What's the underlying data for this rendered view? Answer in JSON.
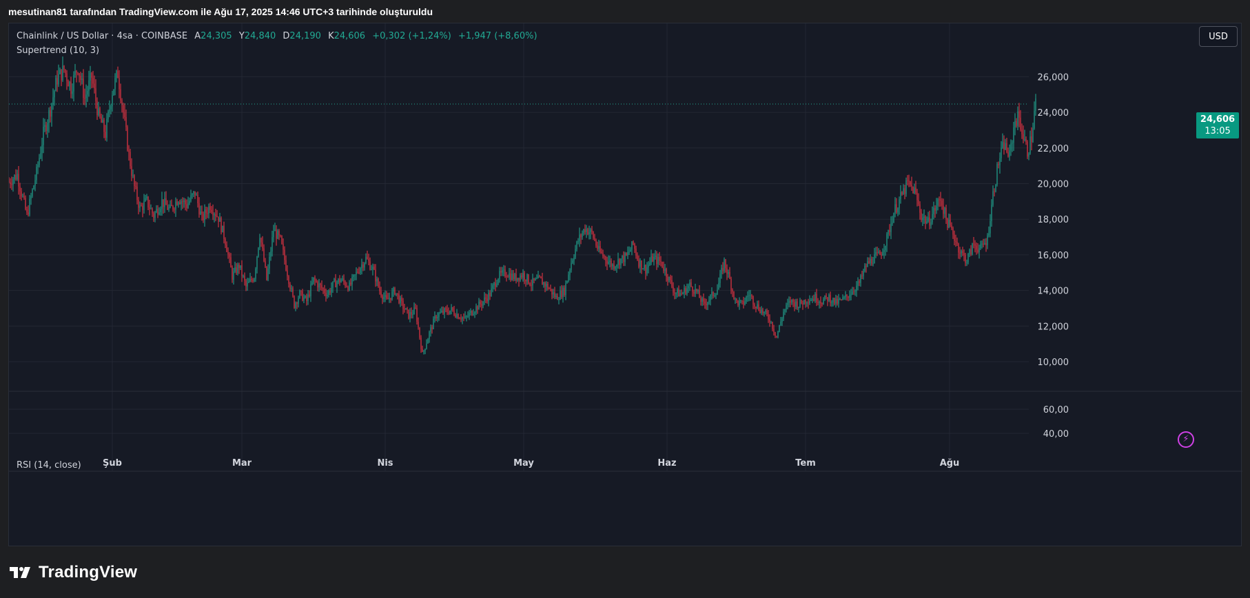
{
  "caption": "mesutinan81 tarafından TradingView.com ile Ağu 17, 2025 14:46 UTC+3 tarihinde oluşturuldu",
  "legend": {
    "title": "Chainlink / US Dollar · 4sa · COINBASE",
    "open_key": "A",
    "open": "24,305",
    "high_key": "Y",
    "high": "24,840",
    "low_key": "D",
    "low": "24,190",
    "close_key": "K",
    "close": "24,606",
    "change": "+0,302 (+1,24%)",
    "change2": "+1,947 (+8,60%)"
  },
  "supertrend_label": "Supertrend (10, 3)",
  "rsi_label": "RSI (14, close)",
  "currency_button": "USD",
  "price_tag": {
    "price": "24,606",
    "countdown": "13:05"
  },
  "brand": "TradingView",
  "colors": {
    "up": "#22ab94",
    "down": "#f23645",
    "bg": "#161a25",
    "grid": "#232733"
  },
  "chart_data": {
    "type": "candlestick",
    "symbol": "Chainlink / US Dollar",
    "interval": "4h",
    "exchange": "COINBASE",
    "x_ticks": [
      "Şub",
      "Mar",
      "Nis",
      "May",
      "Haz",
      "Tem",
      "Ağu"
    ],
    "y_ticks": [
      "10,000",
      "12,000",
      "14,000",
      "16,000",
      "18,000",
      "20,000",
      "22,000",
      "24,000",
      "26,000"
    ],
    "ylim": [
      8.4,
      28.8
    ],
    "rsi_ticks": [
      "40,00",
      "60,00"
    ],
    "last_price": 24.606,
    "anchors": [
      [
        0,
        20.1
      ],
      [
        12,
        20.5
      ],
      [
        26,
        18.2
      ],
      [
        40,
        20.6
      ],
      [
        50,
        22.8
      ],
      [
        60,
        24.2
      ],
      [
        70,
        25.9
      ],
      [
        80,
        26.4
      ],
      [
        90,
        25.4
      ],
      [
        100,
        26.6
      ],
      [
        110,
        24.8
      ],
      [
        120,
        26.0
      ],
      [
        130,
        23.8
      ],
      [
        140,
        22.8
      ],
      [
        150,
        25.2
      ],
      [
        158,
        26.2
      ],
      [
        166,
        24.0
      ],
      [
        174,
        21.6
      ],
      [
        182,
        19.8
      ],
      [
        190,
        18.6
      ],
      [
        200,
        19.0
      ],
      [
        210,
        18.2
      ],
      [
        222,
        19.0
      ],
      [
        234,
        18.5
      ],
      [
        246,
        19.2
      ],
      [
        258,
        18.8
      ],
      [
        270,
        19.5
      ],
      [
        280,
        18.0
      ],
      [
        292,
        18.8
      ],
      [
        304,
        18.1
      ],
      [
        314,
        16.8
      ],
      [
        324,
        14.8
      ],
      [
        334,
        15.4
      ],
      [
        344,
        14.2
      ],
      [
        356,
        14.8
      ],
      [
        364,
        17.2
      ],
      [
        374,
        14.6
      ],
      [
        384,
        17.4
      ],
      [
        394,
        16.8
      ],
      [
        404,
        15.0
      ],
      [
        414,
        13.2
      ],
      [
        422,
        13.8
      ],
      [
        432,
        13.4
      ],
      [
        442,
        14.6
      ],
      [
        452,
        14.2
      ],
      [
        462,
        13.8
      ],
      [
        472,
        14.4
      ],
      [
        482,
        14.6
      ],
      [
        494,
        14.2
      ],
      [
        506,
        15.1
      ],
      [
        518,
        15.8
      ],
      [
        528,
        15.2
      ],
      [
        538,
        14.0
      ],
      [
        548,
        13.4
      ],
      [
        560,
        14.0
      ],
      [
        570,
        13.2
      ],
      [
        580,
        12.6
      ],
      [
        590,
        12.9
      ],
      [
        600,
        10.4
      ],
      [
        610,
        11.6
      ],
      [
        620,
        12.6
      ],
      [
        632,
        12.8
      ],
      [
        642,
        12.9
      ],
      [
        652,
        12.6
      ],
      [
        662,
        12.4
      ],
      [
        674,
        12.9
      ],
      [
        686,
        13.3
      ],
      [
        698,
        13.8
      ],
      [
        710,
        14.8
      ],
      [
        722,
        15.0
      ],
      [
        734,
        14.7
      ],
      [
        746,
        14.9
      ],
      [
        758,
        14.4
      ],
      [
        770,
        14.6
      ],
      [
        782,
        14.2
      ],
      [
        794,
        13.6
      ],
      [
        806,
        14.0
      ],
      [
        816,
        15.6
      ],
      [
        826,
        16.8
      ],
      [
        836,
        17.5
      ],
      [
        846,
        17.2
      ],
      [
        856,
        16.2
      ],
      [
        866,
        15.8
      ],
      [
        876,
        15.4
      ],
      [
        886,
        15.7
      ],
      [
        896,
        15.9
      ],
      [
        906,
        16.6
      ],
      [
        914,
        15.6
      ],
      [
        924,
        15.2
      ],
      [
        934,
        15.8
      ],
      [
        946,
        15.6
      ],
      [
        956,
        14.8
      ],
      [
        966,
        13.9
      ],
      [
        976,
        13.8
      ],
      [
        988,
        14.3
      ],
      [
        998,
        13.9
      ],
      [
        1008,
        13.2
      ],
      [
        1018,
        13.6
      ],
      [
        1028,
        14.1
      ],
      [
        1038,
        15.6
      ],
      [
        1046,
        14.6
      ],
      [
        1054,
        13.4
      ],
      [
        1064,
        13.2
      ],
      [
        1074,
        13.8
      ],
      [
        1084,
        13.2
      ],
      [
        1094,
        12.8
      ],
      [
        1104,
        12.4
      ],
      [
        1114,
        11.4
      ],
      [
        1124,
        12.8
      ],
      [
        1134,
        13.4
      ],
      [
        1146,
        13.2
      ],
      [
        1158,
        13.5
      ],
      [
        1170,
        13.6
      ],
      [
        1180,
        13.4
      ],
      [
        1190,
        13.6
      ],
      [
        1200,
        13.3
      ],
      [
        1212,
        13.5
      ],
      [
        1224,
        14.0
      ],
      [
        1234,
        14.4
      ],
      [
        1244,
        15.4
      ],
      [
        1254,
        15.8
      ],
      [
        1264,
        16.0
      ],
      [
        1274,
        16.9
      ],
      [
        1284,
        18.4
      ],
      [
        1294,
        19.2
      ],
      [
        1304,
        20.0
      ],
      [
        1314,
        19.6
      ],
      [
        1324,
        18.2
      ],
      [
        1334,
        17.8
      ],
      [
        1344,
        18.6
      ],
      [
        1352,
        19.2
      ],
      [
        1360,
        18.0
      ],
      [
        1370,
        17.2
      ],
      [
        1380,
        16.2
      ],
      [
        1390,
        15.7
      ],
      [
        1400,
        16.6
      ],
      [
        1410,
        16.3
      ],
      [
        1420,
        16.9
      ],
      [
        1428,
        19.4
      ],
      [
        1436,
        21.2
      ],
      [
        1444,
        22.2
      ],
      [
        1452,
        21.5
      ],
      [
        1460,
        23.6
      ],
      [
        1466,
        23.7
      ],
      [
        1472,
        22.6
      ],
      [
        1478,
        21.8
      ],
      [
        1484,
        22.6
      ],
      [
        1490,
        24.606
      ]
    ]
  }
}
